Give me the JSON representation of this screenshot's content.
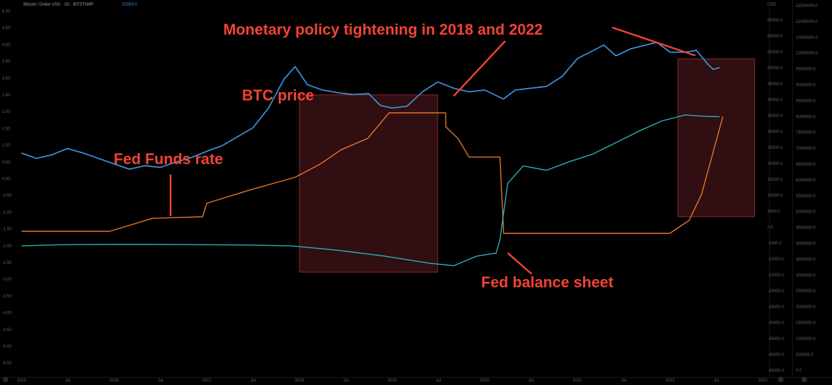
{
  "chart_data": {
    "type": "line",
    "title": "",
    "legend": {
      "symbol_text": "Bitcoin / Dollar USD · 1D · BITSTAMP",
      "last_value": "20263.0"
    },
    "annotations": [
      {
        "text": "Monetary policy tightening in 2018 and 2022"
      },
      {
        "text": "BTC price"
      },
      {
        "text": "Fed Funds rate"
      },
      {
        "text": "Fed balance sheet"
      }
    ],
    "colors": {
      "btc": "#3d8fd6",
      "fed_funds": "#e8792b",
      "balance_sheet": "#2bb3b8",
      "annotation": "#f24336",
      "highlight_fill": "#3a1114",
      "highlight_stroke": "#8a2b2e"
    },
    "grid": false,
    "tightening_periods": [
      {
        "start": "2018-01-01",
        "end": "2019-06-30"
      },
      {
        "start": "2022-02-01",
        "end": "2022-11-30"
      }
    ],
    "series": [
      {
        "key": "btc",
        "points": [
          [
            "2015-01-01",
            0.9
          ],
          [
            "2015-03-01",
            0.84
          ],
          [
            "2015-05-01",
            0.88
          ],
          [
            "2015-07-01",
            0.95
          ],
          [
            "2015-09-01",
            0.9
          ],
          [
            "2015-11-01",
            0.84
          ],
          [
            "2016-01-01",
            0.78
          ],
          [
            "2016-03-01",
            0.72
          ],
          [
            "2016-05-01",
            0.76
          ],
          [
            "2016-07-01",
            0.74
          ],
          [
            "2016-09-01",
            0.8
          ],
          [
            "2016-11-01",
            0.85
          ],
          [
            "2017-01-01",
            0.92
          ],
          [
            "2017-03-01",
            0.98
          ],
          [
            "2017-05-01",
            1.08
          ],
          [
            "2017-07-01",
            1.18
          ],
          [
            "2017-09-01",
            1.4
          ],
          [
            "2017-11-01",
            1.72
          ],
          [
            "2017-12-15",
            1.86
          ],
          [
            "2018-02-01",
            1.66
          ],
          [
            "2018-04-01",
            1.6
          ],
          [
            "2018-06-01",
            1.57
          ],
          [
            "2018-08-01",
            1.55
          ],
          [
            "2018-10-01",
            1.56
          ],
          [
            "2018-11-15",
            1.43
          ],
          [
            "2019-01-01",
            1.4
          ],
          [
            "2019-03-01",
            1.42
          ],
          [
            "2019-05-01",
            1.58
          ],
          [
            "2019-06-30",
            1.69
          ],
          [
            "2019-09-01",
            1.62
          ],
          [
            "2019-11-01",
            1.58
          ],
          [
            "2020-01-01",
            1.6
          ],
          [
            "2020-03-15",
            1.5
          ],
          [
            "2020-05-01",
            1.6
          ],
          [
            "2020-07-01",
            1.62
          ],
          [
            "2020-09-01",
            1.64
          ],
          [
            "2020-11-01",
            1.75
          ],
          [
            "2021-01-01",
            1.95
          ],
          [
            "2021-04-15",
            2.1
          ],
          [
            "2021-06-01",
            1.98
          ],
          [
            "2021-08-01",
            2.06
          ],
          [
            "2021-11-10",
            2.13
          ],
          [
            "2022-01-01",
            2.02
          ],
          [
            "2022-03-01",
            2.02
          ],
          [
            "2022-04-15",
            2.04
          ],
          [
            "2022-06-01",
            1.88
          ],
          [
            "2022-06-20",
            1.83
          ],
          [
            "2022-07-15",
            1.85
          ]
        ]
      },
      {
        "key": "fed_funds",
        "points": [
          [
            "2015-01-01",
            0.12
          ],
          [
            "2015-12-15",
            0.12
          ],
          [
            "2016-06-01",
            0.37
          ],
          [
            "2016-12-15",
            0.4
          ],
          [
            "2017-01-01",
            0.66
          ],
          [
            "2017-06-15",
            0.91
          ],
          [
            "2017-12-15",
            1.16
          ],
          [
            "2018-03-22",
            1.41
          ],
          [
            "2018-06-14",
            1.69
          ],
          [
            "2018-09-27",
            1.91
          ],
          [
            "2018-12-20",
            2.4
          ],
          [
            "2019-03-01",
            2.4
          ],
          [
            "2019-07-31",
            2.4
          ],
          [
            "2019-08-01",
            2.13
          ],
          [
            "2019-09-19",
            1.9
          ],
          [
            "2019-10-31",
            1.55
          ],
          [
            "2020-03-01",
            1.55
          ],
          [
            "2020-03-16",
            0.08
          ],
          [
            "2021-12-31",
            0.08
          ],
          [
            "2022-03-17",
            0.33
          ],
          [
            "2022-05-05",
            0.83
          ],
          [
            "2022-06-16",
            1.58
          ],
          [
            "2022-07-28",
            2.33
          ]
        ]
      },
      {
        "key": "balance_sheet",
        "points": [
          [
            "2015-01-01",
            4.45
          ],
          [
            "2015-06-01",
            4.49
          ],
          [
            "2016-01-01",
            4.5
          ],
          [
            "2016-06-01",
            4.5
          ],
          [
            "2017-01-01",
            4.49
          ],
          [
            "2017-06-01",
            4.48
          ],
          [
            "2017-12-01",
            4.45
          ],
          [
            "2018-06-01",
            4.3
          ],
          [
            "2018-12-01",
            4.1
          ],
          [
            "2019-06-01",
            3.85
          ],
          [
            "2019-09-01",
            3.77
          ],
          [
            "2019-12-01",
            4.1
          ],
          [
            "2020-02-15",
            4.2
          ],
          [
            "2020-03-01",
            4.65
          ],
          [
            "2020-04-01",
            6.6
          ],
          [
            "2020-06-01",
            7.2
          ],
          [
            "2020-09-01",
            7.05
          ],
          [
            "2020-12-01",
            7.35
          ],
          [
            "2021-03-01",
            7.6
          ],
          [
            "2021-06-01",
            8.0
          ],
          [
            "2021-09-01",
            8.4
          ],
          [
            "2021-12-01",
            8.75
          ],
          [
            "2022-03-01",
            8.95
          ],
          [
            "2022-06-01",
            8.9
          ],
          [
            "2022-07-15",
            8.89
          ]
        ]
      }
    ],
    "y_ticks_left": [
      "5.00",
      "4.50",
      "4.00",
      "3.50",
      "3.00",
      "2.50",
      "2.00",
      "1.50",
      "1.00",
      "0.50",
      "0.00",
      "-0.50",
      "-1.00",
      "-1.50",
      "-2.00",
      "-2.50",
      "-3.00",
      "-3.50",
      "-4.00",
      "-4.50",
      "-5.00",
      "-5.50"
    ],
    "y_ticks_mid": [
      "USD",
      "65000.0",
      "60000.0",
      "55000.0",
      "50000.0",
      "45000.0",
      "40000.0",
      "35000.0",
      "30000.0",
      "25000.0",
      "20000.0",
      "15000.0",
      "10000.0",
      "5000.0",
      "0.0",
      "-5000.0",
      "-10000.0",
      "-15000.0",
      "-20000.0",
      "-25000.0",
      "-30000.0",
      "-35000.0",
      "-40000.0",
      "-45000.0"
    ],
    "y_ticks_right": [
      "11500000.0",
      "11000000.0",
      "10500000.0",
      "10000000.0",
      "9500000.0",
      "9000000.0",
      "8500000.0",
      "8000000.0",
      "7500000.0",
      "7000000.0",
      "6500000.0",
      "6000000.0",
      "5500000.0",
      "5000000.0",
      "4500000.0",
      "4000000.0",
      "3500000.0",
      "3000000.0",
      "2500000.0",
      "2000000.0",
      "1500000.0",
      "1000000.0",
      "500000.0",
      "0.0"
    ],
    "x_ticks": [
      "2015",
      "Jul",
      "2016",
      "Jul",
      "2017",
      "Jul",
      "2018",
      "Jul",
      "2019",
      "Jul",
      "2020",
      "Jul",
      "2021",
      "Jul",
      "2022",
      "Jul",
      "2023"
    ]
  }
}
